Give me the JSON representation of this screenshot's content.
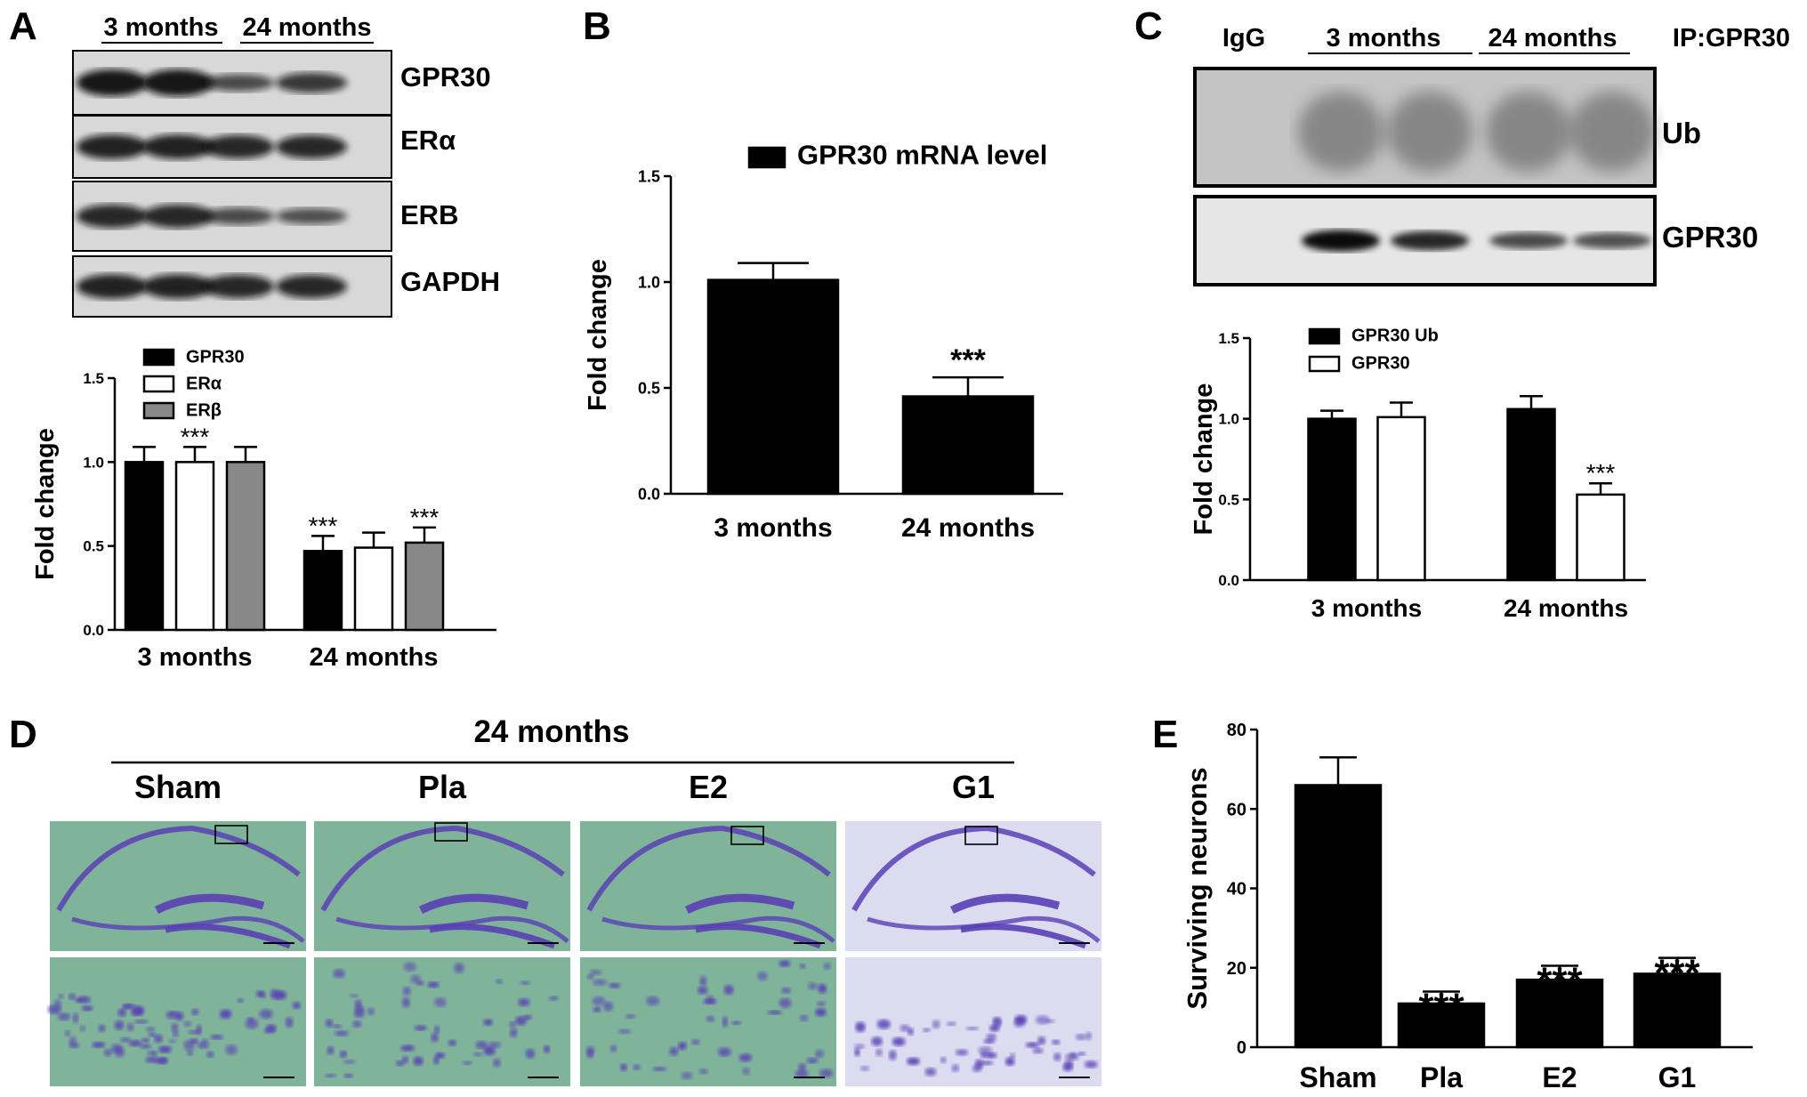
{
  "panel_letters": [
    "A",
    "B",
    "C",
    "D",
    "E"
  ],
  "panelA": {
    "groups": [
      "3 months",
      "24 months"
    ],
    "blots": [
      "GPR30",
      "ERα",
      "ERB",
      "GAPDH"
    ]
  },
  "panelC": {
    "ip_label": "IP:GPR30",
    "igg_label": "IgG",
    "groups": [
      "3 months",
      "24 months"
    ],
    "blots": [
      "Ub",
      "GPR30"
    ]
  },
  "panelD": {
    "group": "24 months",
    "columns": [
      "Sham",
      "Pla",
      "E2",
      "G1"
    ]
  },
  "colors": {
    "black": "#000000",
    "white": "#ffffff",
    "gray": "#888888",
    "stain_green": "#7fb39a",
    "stain_purple": "#5a3fb5",
    "g1_bg": "#dcdcf0"
  },
  "chart_data": [
    {
      "id": "A",
      "type": "bar",
      "categories": [
        "3 months",
        "24 months"
      ],
      "series": [
        {
          "name": "GPR30",
          "values": [
            1.0,
            0.47
          ],
          "errors": [
            0.09,
            0.09
          ],
          "color": "#000000"
        },
        {
          "name": "ERα",
          "values": [
            1.0,
            0.49
          ],
          "errors": [
            0.09,
            0.09
          ],
          "color": "#ffffff"
        },
        {
          "name": "ERβ",
          "values": [
            1.0,
            0.52
          ],
          "errors": [
            0.09,
            0.09
          ],
          "color": "#888888"
        }
      ],
      "annotations": [
        "",
        "***",
        "",
        "***",
        "",
        "***"
      ],
      "ylabel": "Fold change",
      "ylim": [
        0,
        1.5
      ],
      "yticks": [
        "0.0",
        "0.5",
        "1.0",
        "1.5"
      ],
      "legend": "top-left"
    },
    {
      "id": "B",
      "type": "bar",
      "categories": [
        "3 months",
        "24 months"
      ],
      "series": [
        {
          "name": "GPR30 mRNA level",
          "values": [
            1.01,
            0.46
          ],
          "errors": [
            0.08,
            0.09
          ],
          "color": "#000000"
        }
      ],
      "annotations": [
        "",
        "***"
      ],
      "ylabel": "Fold change",
      "ylim": [
        0,
        1.5
      ],
      "yticks": [
        "0.0",
        "0.5",
        "1.0",
        "1.5"
      ],
      "legend": "top-right"
    },
    {
      "id": "C",
      "type": "bar",
      "categories": [
        "3 months",
        "24 months"
      ],
      "series": [
        {
          "name": "GPR30 Ub",
          "values": [
            1.0,
            1.06
          ],
          "errors": [
            0.05,
            0.08
          ],
          "color": "#000000"
        },
        {
          "name": "GPR30",
          "values": [
            1.01,
            0.53
          ],
          "errors": [
            0.09,
            0.07
          ],
          "color": "#ffffff"
        }
      ],
      "annotations": [
        "",
        "",
        "",
        "***"
      ],
      "ylabel": "Fold change",
      "ylim": [
        0,
        1.5
      ],
      "yticks": [
        "0.0",
        "0.5",
        "1.0",
        "1.5"
      ],
      "legend": "top-left"
    },
    {
      "id": "E",
      "type": "bar",
      "categories": [
        "Sham",
        "Pla",
        "E2",
        "G1"
      ],
      "series": [
        {
          "values": [
            66,
            11,
            17,
            18.5
          ],
          "errors": [
            7,
            3,
            3.5,
            4
          ],
          "color": "#000000"
        }
      ],
      "annotations": [
        "",
        "***",
        "***",
        "***"
      ],
      "ylabel": "Surviving neurons",
      "ylim": [
        0,
        80
      ],
      "yticks": [
        "0",
        "20",
        "40",
        "60",
        "80"
      ]
    }
  ]
}
